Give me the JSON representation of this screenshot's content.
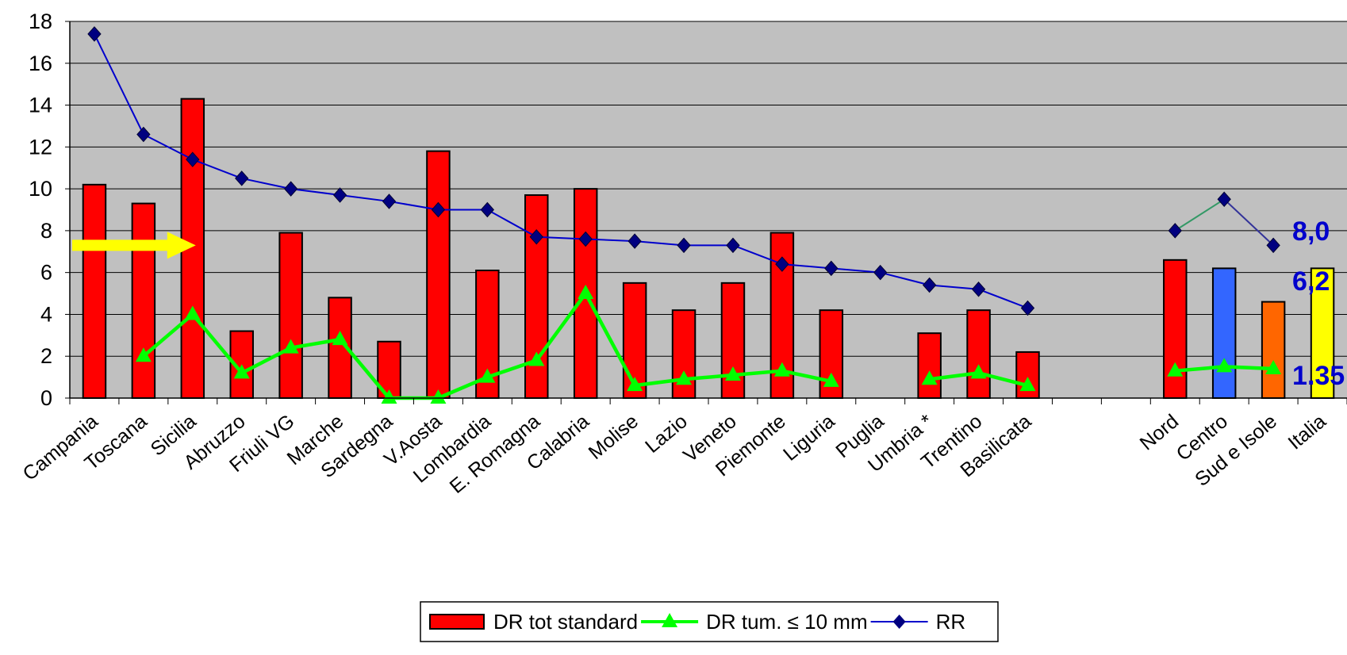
{
  "chart_data": {
    "type": "bar",
    "categories": [
      "Campania",
      "Toscana",
      "Sicilia",
      "Abruzzo",
      "Friuli VG",
      "Marche",
      "Sardegna",
      "V.Aosta",
      "Lombardia",
      "E. Romagna",
      "Calabria",
      "Molise",
      "Lazio",
      "Veneto",
      "Piemonte",
      "Liguria",
      "Puglia",
      "Umbria *",
      "Trentino",
      "Basilicata",
      "",
      "",
      "Nord",
      "Centro",
      "Sud e Isole",
      "Italia"
    ],
    "ylim": [
      0,
      18
    ],
    "yticks": [
      0,
      2,
      4,
      6,
      8,
      10,
      12,
      14,
      16,
      18
    ],
    "grid": true,
    "legend_position": "bottom",
    "series": [
      {
        "name": "DR tot standard",
        "kind": "bar",
        "color": "#ff0000",
        "values": [
          10.2,
          9.3,
          14.3,
          3.2,
          7.9,
          4.8,
          2.7,
          11.8,
          6.1,
          9.7,
          10.0,
          5.5,
          4.2,
          5.5,
          7.9,
          4.2,
          null,
          3.1,
          4.2,
          2.2,
          null,
          null,
          6.6,
          6.2,
          4.6,
          6.2
        ],
        "bar_colors": {
          "Centro": "#3366ff",
          "Sud e Isole": "#ff6600",
          "Italia": "#ffff00"
        }
      },
      {
        "name": "DR tum. ≤ 10 mm",
        "kind": "line",
        "color": "#00ff00",
        "marker": "triangle",
        "values": [
          null,
          2.0,
          4.0,
          1.2,
          2.4,
          2.8,
          0.0,
          0.0,
          1.0,
          1.8,
          5.0,
          0.6,
          0.9,
          1.1,
          1.3,
          0.8,
          null,
          0.9,
          1.2,
          0.6,
          null,
          null,
          1.3,
          1.5,
          1.4,
          null
        ]
      },
      {
        "name": "RR",
        "kind": "line",
        "color": "#0000cc",
        "marker": "diamond",
        "values": [
          17.4,
          12.6,
          11.4,
          10.5,
          10.0,
          9.7,
          9.4,
          9.0,
          9.0,
          7.7,
          7.6,
          7.5,
          7.3,
          7.3,
          6.4,
          6.2,
          6.0,
          5.4,
          5.2,
          4.3,
          null,
          null,
          8.0,
          9.5,
          7.3,
          null
        ],
        "segment_colors": {
          "Nord-Centro": "#339966",
          "Centro-Sud e Isole": "#333399"
        }
      }
    ],
    "annotations": [
      {
        "text": "8,0",
        "at_category": "Italia",
        "y": 8.0,
        "color": "#0000cc"
      },
      {
        "text": "6,2",
        "at_category": "Italia",
        "y": 5.6,
        "color": "#0000cc"
      },
      {
        "text": "1.35",
        "at_category": "Italia",
        "y": 1.1,
        "color": "#0000cc"
      }
    ],
    "arrow": {
      "color": "#ffff00",
      "y": 7.3,
      "from_category": "Campania",
      "to_category": "Sicilia"
    }
  },
  "colors": {
    "plot_background": "#c0c0c0",
    "gridline": "#000000",
    "axis_text": "#000000"
  }
}
